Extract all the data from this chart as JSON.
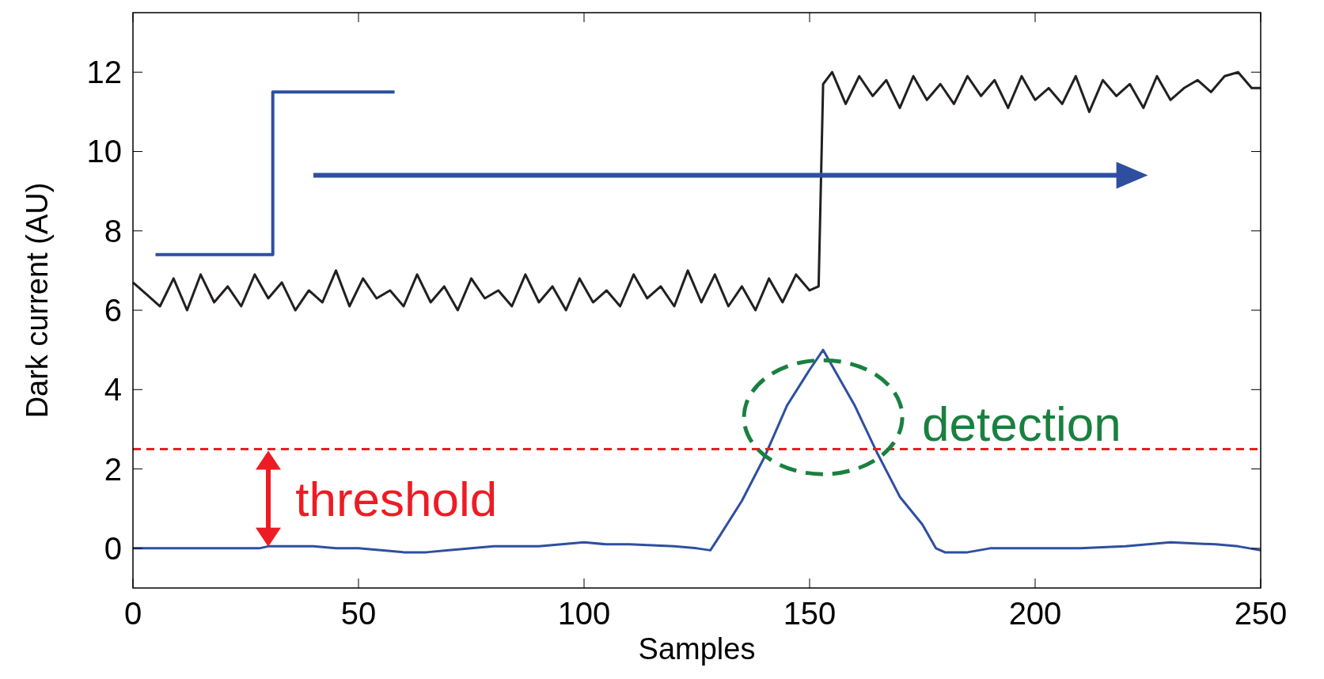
{
  "chart_data": {
    "type": "line",
    "xlabel": "Samples",
    "ylabel": "Dark current (AU)",
    "xlim": [
      0,
      250
    ],
    "ylim": [
      -1,
      13.5
    ],
    "xticks": [
      0,
      50,
      100,
      150,
      200,
      250
    ],
    "yticks": [
      0,
      2,
      4,
      6,
      8,
      10,
      12
    ],
    "grid": false,
    "series": [
      {
        "color": "#231f20",
        "x": [
          0,
          3,
          6,
          9,
          12,
          15,
          18,
          21,
          24,
          27,
          30,
          33,
          36,
          39,
          42,
          45,
          48,
          51,
          54,
          57,
          60,
          63,
          66,
          69,
          72,
          75,
          78,
          81,
          84,
          87,
          90,
          93,
          96,
          99,
          102,
          105,
          108,
          111,
          114,
          117,
          120,
          123,
          126,
          129,
          132,
          135,
          138,
          141,
          144,
          147,
          150,
          152,
          153,
          155,
          158,
          161,
          164,
          167,
          170,
          173,
          176,
          179,
          182,
          185,
          188,
          191,
          194,
          197,
          200,
          203,
          206,
          209,
          212,
          215,
          218,
          221,
          224,
          227,
          230,
          233,
          236,
          239,
          242,
          245,
          248,
          250
        ],
        "values": [
          6.7,
          6.4,
          6.1,
          6.8,
          6.0,
          6.9,
          6.2,
          6.6,
          6.1,
          6.9,
          6.3,
          6.7,
          6.0,
          6.5,
          6.2,
          7.0,
          6.1,
          6.8,
          6.3,
          6.5,
          6.1,
          6.9,
          6.2,
          6.6,
          6.0,
          6.8,
          6.3,
          6.5,
          6.1,
          6.9,
          6.2,
          6.6,
          6.0,
          6.8,
          6.2,
          6.5,
          6.1,
          6.9,
          6.3,
          6.6,
          6.1,
          7.0,
          6.2,
          6.9,
          6.1,
          6.6,
          6.0,
          6.8,
          6.2,
          6.9,
          6.5,
          6.6,
          11.7,
          12.0,
          11.2,
          11.9,
          11.4,
          11.8,
          11.1,
          11.9,
          11.3,
          11.7,
          11.2,
          11.9,
          11.4,
          11.8,
          11.1,
          11.9,
          11.3,
          11.6,
          11.2,
          11.9,
          11.0,
          11.8,
          11.4,
          11.7,
          11.1,
          11.9,
          11.3,
          11.6,
          11.8,
          11.5,
          11.9,
          12.0,
          11.6,
          11.6
        ]
      },
      {
        "color": "#2e4fa0",
        "x": [
          0,
          28,
          30,
          35,
          40,
          45,
          50,
          55,
          60,
          65,
          70,
          80,
          90,
          100,
          105,
          110,
          120,
          125,
          128,
          130,
          135,
          140,
          145,
          150,
          153,
          155,
          160,
          165,
          170,
          175,
          178,
          180,
          185,
          190,
          200,
          210,
          220,
          230,
          240,
          245,
          250
        ],
        "values": [
          0,
          0,
          0.05,
          0.05,
          0.05,
          0,
          0,
          -0.05,
          -0.1,
          -0.1,
          -0.05,
          0.05,
          0.05,
          0.15,
          0.1,
          0.1,
          0.05,
          0,
          -0.05,
          0.3,
          1.2,
          2.3,
          3.6,
          4.5,
          5,
          4.6,
          3.6,
          2.4,
          1.3,
          0.6,
          0,
          -0.1,
          -0.1,
          0,
          0,
          0,
          0.05,
          0.15,
          0.1,
          0.05,
          -0.05
        ]
      },
      {
        "type": "step",
        "color": "#2e4fa0",
        "x": [
          5,
          31,
          58
        ],
        "values": [
          7.4,
          11.5,
          11.5
        ]
      }
    ],
    "ref_lines": [
      {
        "axis": "y",
        "value": 2.5,
        "label": "threshold",
        "color": "#ed1c24",
        "line_style": "dashed"
      }
    ],
    "annotations": [
      "detection"
    ]
  }
}
